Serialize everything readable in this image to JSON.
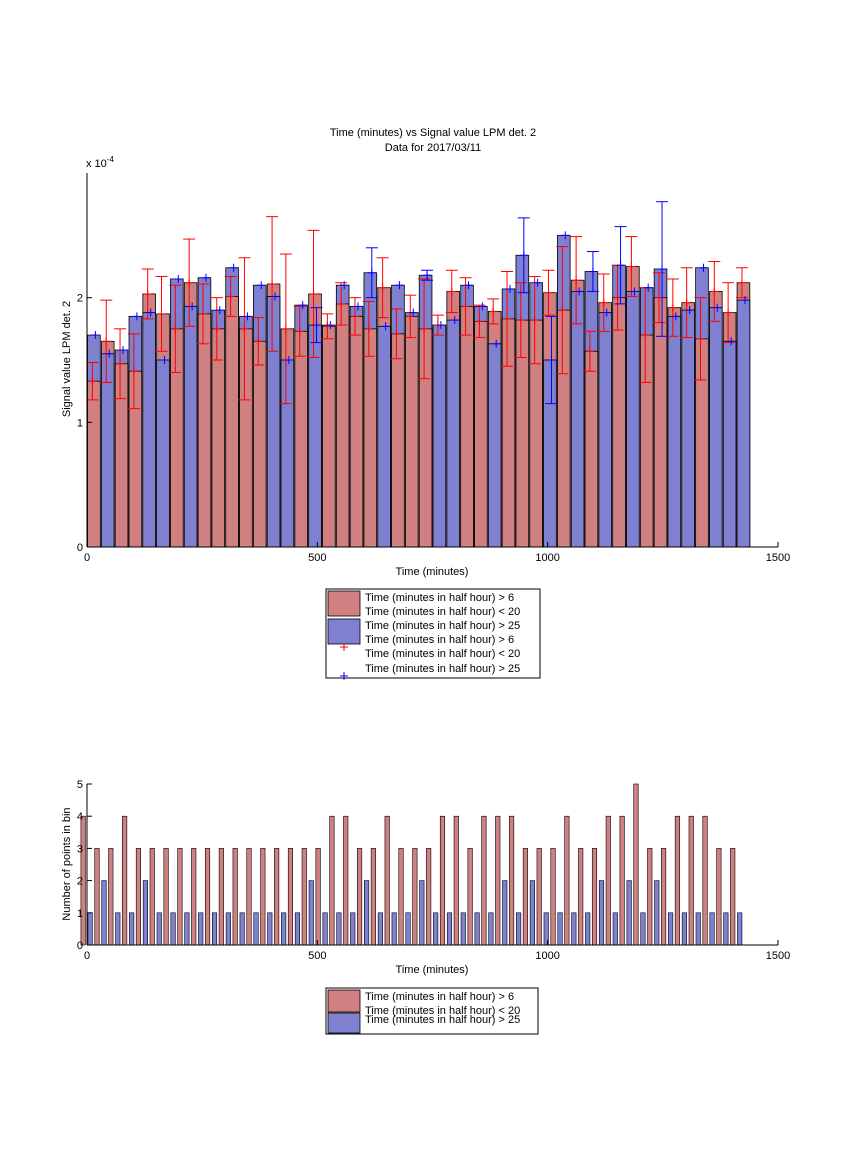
{
  "chart_data": [
    {
      "type": "bar",
      "title": "Time (minutes) vs Signal value LPM det. 2",
      "subtitle": "Data for 2017/03/11",
      "xlabel": "Time (minutes)",
      "ylabel": "Signal value LPM det. 2",
      "exponent_label": "x 10",
      "exponent_power": "-4",
      "xlim": [
        0,
        1500
      ],
      "ylim": [
        0,
        3
      ],
      "xticks": [
        "0",
        "500",
        "1000",
        "1500"
      ],
      "yticks": [
        "0",
        "1",
        "2"
      ],
      "grid": false,
      "legend_position": "below",
      "bin_centers": [
        15,
        45,
        75,
        105,
        135,
        165,
        195,
        225,
        255,
        285,
        315,
        345,
        375,
        405,
        435,
        465,
        495,
        525,
        555,
        585,
        615,
        645,
        675,
        705,
        735,
        765,
        795,
        825,
        855,
        885,
        915,
        945,
        975,
        1005,
        1035,
        1065,
        1095,
        1125,
        1155,
        1185,
        1215,
        1245,
        1275,
        1305,
        1335,
        1365,
        1395,
        1425
      ],
      "series": [
        {
          "name": "Time (minutes in half hour) > 6\nTime (minutes in half hour) < 20",
          "color": "#d08080",
          "values": [
            1.33,
            1.65,
            1.47,
            1.41,
            2.03,
            1.87,
            1.75,
            2.12,
            1.87,
            1.75,
            2.01,
            1.75,
            1.65,
            2.11,
            1.75,
            1.73,
            2.03,
            1.77,
            1.95,
            1.85,
            1.75,
            2.08,
            1.71,
            1.85,
            1.75,
            1.78,
            2.05,
            1.93,
            1.81,
            1.89,
            1.83,
            1.82,
            1.82,
            2.04,
            1.9,
            2.14,
            1.57,
            1.96,
            2.0,
            2.25,
            1.7,
            2.0,
            1.92,
            1.96,
            1.67,
            2.05,
            1.88,
            2.12
          ],
          "errors": [
            0.15,
            0.33,
            0.28,
            0.3,
            0.2,
            0.3,
            0.35,
            0.35,
            0.24,
            0.25,
            0.16,
            0.57,
            0.19,
            0.54,
            0.6,
            0.2,
            0.51,
            0.1,
            0.17,
            0.15,
            0.22,
            0.24,
            0.2,
            0.17,
            0.4,
            0.08,
            0.17,
            0.23,
            0.13,
            0.1,
            0.38,
            0.3,
            0.35,
            0.18,
            0.51,
            0.35,
            0.16,
            0.23,
            0.26,
            0.24,
            0.38,
            0.2,
            0.23,
            0.28,
            0.33,
            0.24,
            0.24,
            0.12
          ]
        },
        {
          "name": "Time (minutes in half hour) > 25",
          "color": "#8080d0",
          "values": [
            1.7,
            1.55,
            1.58,
            1.85,
            1.88,
            1.5,
            2.15,
            1.93,
            2.16,
            1.9,
            2.24,
            1.85,
            2.1,
            2.01,
            1.5,
            1.94,
            1.78,
            1.78,
            2.1,
            1.93,
            2.2,
            1.77,
            2.1,
            1.88,
            2.18,
            1.78,
            1.82,
            2.1,
            1.93,
            1.63,
            2.07,
            2.34,
            2.12,
            1.5,
            2.5,
            2.05,
            2.21,
            1.88,
            2.26,
            2.05,
            2.08,
            2.23,
            1.85,
            1.9,
            2.24,
            1.92,
            1.65,
            1.98
          ],
          "errors": [
            0,
            0,
            0,
            0,
            0,
            0,
            0,
            0,
            0,
            0,
            0,
            0,
            0,
            0,
            0,
            0,
            0.14,
            0,
            0,
            0,
            0.2,
            0,
            0,
            0,
            0.04,
            0,
            0,
            0,
            0,
            0,
            0,
            0.3,
            0,
            0.35,
            0,
            0,
            0.16,
            0,
            0.31,
            0,
            0,
            0.54,
            0,
            0,
            0,
            0,
            0,
            0
          ]
        }
      ],
      "legend": {
        "bar_labels": [
          [
            "Time (minutes in half hour) > 6",
            "Time (minutes in half hour) < 20"
          ],
          [
            "Time (minutes in half hour) > 25"
          ]
        ],
        "marker_labels": [
          [
            "Time (minutes in half hour) > 6",
            "Time (minutes in half hour) < 20"
          ],
          [
            "Time (minutes in half hour) > 25"
          ]
        ]
      }
    },
    {
      "type": "bar",
      "xlabel": "Time (minutes)",
      "ylabel": "Number of points in bin",
      "xlim": [
        0,
        1500
      ],
      "ylim": [
        0,
        5
      ],
      "xticks": [
        "0",
        "500",
        "1000",
        "1500"
      ],
      "yticks": [
        "0",
        "1",
        "2",
        "3",
        "4",
        "5"
      ],
      "grid": false,
      "legend_position": "below",
      "bin_centers": [
        15,
        45,
        75,
        105,
        135,
        165,
        195,
        225,
        255,
        285,
        315,
        345,
        375,
        405,
        435,
        465,
        495,
        525,
        555,
        585,
        615,
        645,
        675,
        705,
        735,
        765,
        795,
        825,
        855,
        885,
        915,
        945,
        975,
        1005,
        1035,
        1065,
        1095,
        1125,
        1155,
        1185,
        1215,
        1245,
        1275,
        1305,
        1335,
        1365,
        1395,
        1425
      ],
      "series": [
        {
          "name": "Time (minutes in half hour) > 6\nTime (minutes in half hour) < 20",
          "color": "#d08080",
          "values": [
            4,
            3,
            3,
            4,
            3,
            3,
            3,
            3,
            3,
            3,
            3,
            3,
            3,
            3,
            3,
            3,
            3,
            3,
            4,
            4,
            3,
            3,
            4,
            3,
            3,
            3,
            4,
            4,
            3,
            4,
            4,
            4,
            3,
            3,
            3,
            4,
            3,
            3,
            4,
            4,
            5,
            3,
            3,
            4,
            4,
            4,
            3,
            3
          ]
        },
        {
          "name": "Time (minutes in half hour) > 25",
          "color": "#8080d0",
          "values": [
            1,
            2,
            1,
            1,
            2,
            1,
            1,
            1,
            1,
            1,
            1,
            1,
            1,
            1,
            1,
            1,
            2,
            1,
            1,
            1,
            2,
            1,
            1,
            1,
            2,
            1,
            1,
            1,
            1,
            1,
            2,
            1,
            2,
            1,
            1,
            1,
            1,
            2,
            1,
            2,
            1,
            2,
            1,
            1,
            1,
            1,
            1,
            1
          ]
        }
      ],
      "legend": {
        "bar_labels": [
          [
            "Time (minutes in half hour) > 6",
            "Time (minutes in half hour) < 20"
          ],
          [
            "Time (minutes in half hour) > 25"
          ]
        ]
      }
    }
  ]
}
